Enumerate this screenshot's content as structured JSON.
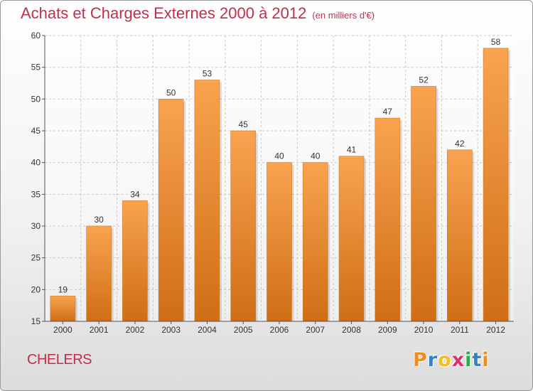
{
  "chart_data": {
    "type": "bar",
    "title": "Achats et Charges Externes 2000 à 2012",
    "unit_label": "(en milliers d'€)",
    "categories": [
      "2000",
      "2001",
      "2002",
      "2003",
      "2004",
      "2005",
      "2006",
      "2007",
      "2008",
      "2009",
      "2010",
      "2011",
      "2012"
    ],
    "values": [
      19,
      30,
      34,
      50,
      53,
      45,
      40,
      40,
      41,
      47,
      52,
      42,
      58
    ],
    "ylim": [
      15,
      60
    ],
    "yticks": [
      15,
      20,
      25,
      30,
      35,
      40,
      45,
      50,
      55,
      60
    ],
    "grid": true,
    "bar_color_top": "#f9a350",
    "bar_color_bottom": "#cf6e15",
    "xlabel": "",
    "ylabel": ""
  },
  "footer": {
    "commune": "CHELERS",
    "logo_letters": [
      "P",
      "r",
      "o",
      "x",
      "i",
      "t",
      "i"
    ],
    "logo_colors": [
      "#f28c1e",
      "#3a7fc4",
      "#f0c020",
      "#e0306a",
      "#2aa84a",
      "#3a7fc4",
      "#f28c1e"
    ]
  },
  "colors": {
    "title": "#c0304a",
    "grid": "#c8c8c8",
    "axis": "#555555"
  }
}
